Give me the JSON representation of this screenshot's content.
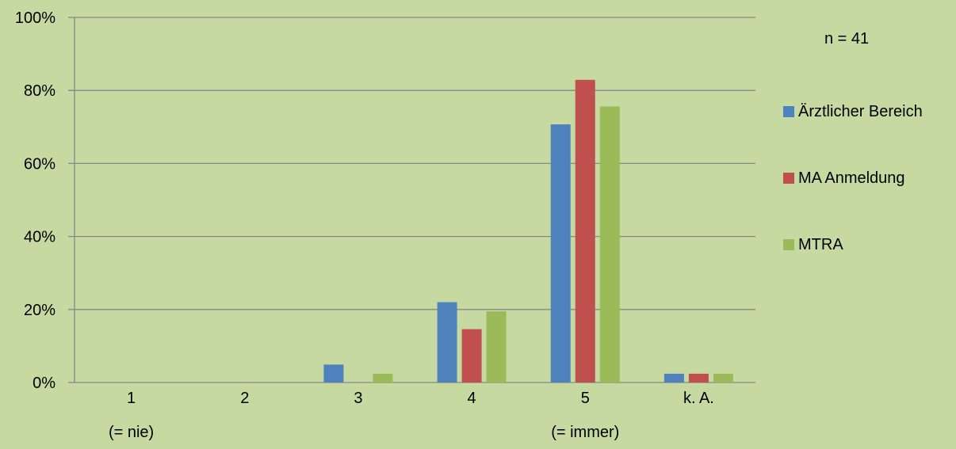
{
  "chart_data": {
    "type": "bar",
    "categories": [
      "1",
      "2",
      "3",
      "4",
      "5",
      "k. A."
    ],
    "category_sublabels": [
      "(= nie)",
      "",
      "",
      "",
      "(= immer)",
      ""
    ],
    "series": [
      {
        "name": "Ärztlicher Bereich",
        "color": "#4f81bd",
        "values": [
          0,
          0,
          4.9,
          22.0,
          70.7,
          2.4
        ]
      },
      {
        "name": "MA Anmeldung",
        "color": "#c0504d",
        "values": [
          0,
          0,
          0,
          14.6,
          82.9,
          2.4
        ]
      },
      {
        "name": "MTRA",
        "color": "#9bbb59",
        "values": [
          0,
          0,
          2.4,
          19.5,
          75.6,
          2.4
        ]
      }
    ],
    "y_ticks": [
      "0%",
      "20%",
      "40%",
      "60%",
      "80%",
      "100%"
    ],
    "ylim": [
      0,
      100
    ],
    "grid": true,
    "legend_position": "right",
    "annotation": "n = 41"
  }
}
